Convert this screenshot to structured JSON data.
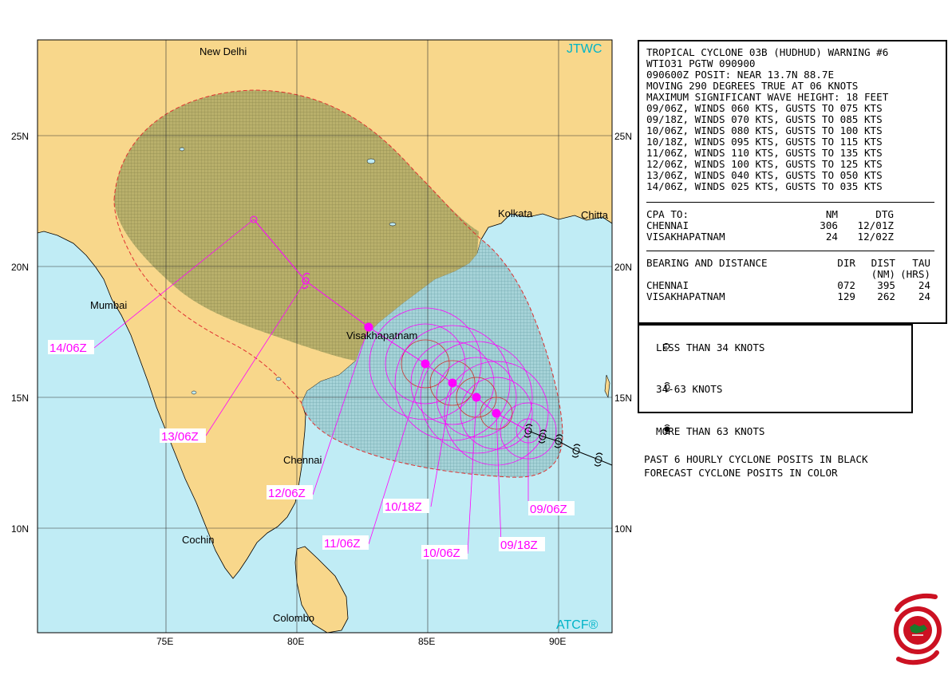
{
  "map": {
    "corner_top_right": "JTWC",
    "corner_bottom_right": "ATCF®",
    "lat_labels": [
      "25N",
      "20N",
      "15N",
      "10N"
    ],
    "lon_labels": [
      "75E",
      "80E",
      "85E",
      "90E"
    ],
    "cities": [
      "New Delhi",
      "Kolkata",
      "Chitta",
      "Mumbai",
      "Visakhapatnam",
      "Chennai",
      "Cochin",
      "Colombo"
    ],
    "forecast_labels": [
      "14/06Z",
      "13/06Z",
      "12/06Z",
      "11/06Z",
      "10/18Z",
      "10/06Z",
      "09/18Z",
      "09/06Z"
    ]
  },
  "warning": {
    "lines": [
      "TROPICAL CYCLONE 03B (HUDHUD) WARNING #6",
      "WTIO31 PGTW 090900",
      "090600Z POSIT: NEAR 13.7N 88.7E",
      "MOVING 290 DEGREES TRUE AT 06 KNOTS",
      "MAXIMUM SIGNIFICANT WAVE HEIGHT: 18 FEET",
      "09/06Z, WINDS 060 KTS, GUSTS TO 075 KTS",
      "09/18Z, WINDS 070 KTS, GUSTS TO 085 KTS",
      "10/06Z, WINDS 080 KTS, GUSTS TO 100 KTS",
      "10/18Z, WINDS 095 KTS, GUSTS TO 115 KTS",
      "11/06Z, WINDS 110 KTS, GUSTS TO 135 KTS",
      "12/06Z, WINDS 100 KTS, GUSTS TO 125 KTS",
      "13/06Z, WINDS 040 KTS, GUSTS TO 050 KTS",
      "14/06Z, WINDS 025 KTS, GUSTS TO 035 KTS"
    ],
    "cpa": {
      "header": {
        "label": "CPA TO:",
        "nm": "NM",
        "dtg": "DTG"
      },
      "rows": [
        {
          "place": "CHENNAI",
          "nm": "306",
          "dtg": "12/01Z"
        },
        {
          "place": "VISAKHAPATNAM",
          "nm": "24",
          "dtg": "12/02Z"
        }
      ]
    },
    "bearing": {
      "header": {
        "label": "BEARING AND DISTANCE",
        "dir": "DIR",
        "dist": "DIST",
        "tau": "TAU"
      },
      "subheader": {
        "dist": "(NM)",
        "tau": "(HRS)"
      },
      "rows": [
        {
          "place": "CHENNAI",
          "dir": "072",
          "dist": "395",
          "tau": "24"
        },
        {
          "place": "VISAKHAPATNAM",
          "dir": "129",
          "dist": "262",
          "tau": "24"
        }
      ]
    }
  },
  "legend": {
    "items": [
      {
        "icon": "open-circle-icon",
        "text": "LESS THAN 34 KNOTS"
      },
      {
        "icon": "open-cyclone-icon",
        "text": "34-63 KNOTS"
      },
      {
        "icon": "filled-cyclone-icon",
        "text": "MORE THAN 63 KNOTS"
      }
    ],
    "notes": [
      "PAST 6 HOURLY CYCLONE POSITS IN BLACK",
      "FORECAST CYCLONE POSITS IN COLOR"
    ]
  },
  "colors": {
    "ocean": "#c0ecf5",
    "land": "#f8d78b",
    "forecast_color": "#ff00ff",
    "danger_border": "#e03030",
    "corner_text": "#00b4c8"
  }
}
